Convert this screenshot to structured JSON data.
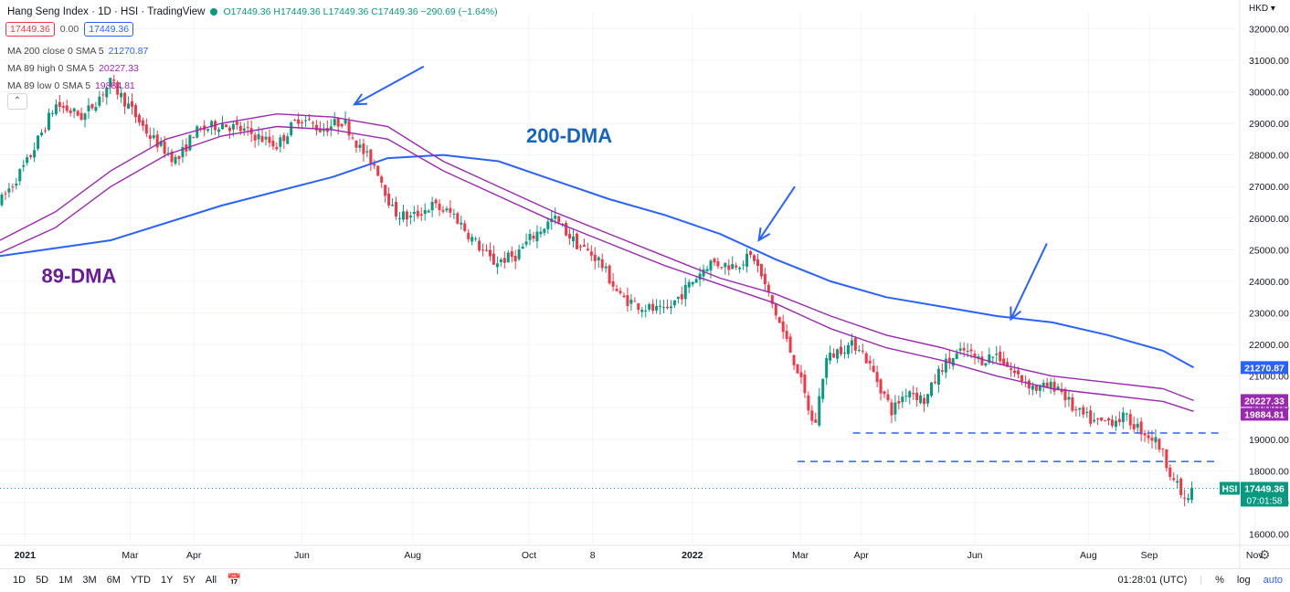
{
  "header": {
    "title": "Hang Seng Index · 1D · HSI · TradingView",
    "ohlc": "O17449.36 H17449.36 L17449.36 C17449.36 −290.69 (−1.64%)",
    "box_red": "17449.36",
    "change": "0.00",
    "box_blue": "17449.36",
    "status_color": "#089981"
  },
  "indicators": [
    {
      "label": "MA 200 close 0 SMA 5",
      "value": "21270.87",
      "color": "#2962ff"
    },
    {
      "label": "MA 89 high 0 SMA 5",
      "value": "20227.33",
      "color": "#9c27b0"
    },
    {
      "label": "MA 89 low 0 SMA 5",
      "value": "19884.81",
      "color": "#9c27b0"
    }
  ],
  "toolbar": {
    "timeframes": [
      "1D",
      "5D",
      "1M",
      "3M",
      "6M",
      "YTD",
      "1Y",
      "5Y",
      "All"
    ],
    "time": "01:28:01 (UTC)",
    "percent": "%",
    "log": "log",
    "auto": "auto"
  },
  "chart_data": {
    "type": "candlestick",
    "currency": "HKD",
    "title": "Hang Seng Index · 1D · HSI",
    "x_range": [
      0,
      22.3
    ],
    "ylim": [
      15700,
      32500
    ],
    "y_ticks": [
      16000,
      17000,
      18000,
      19000,
      20000,
      21000,
      22000,
      23000,
      24000,
      25000,
      26000,
      27000,
      28000,
      29000,
      30000,
      31000,
      32000
    ],
    "x_ticks": [
      {
        "label": "2021",
        "t": 0.45,
        "bold": true
      },
      {
        "label": "Mar",
        "t": 2.35
      },
      {
        "label": "Apr",
        "t": 3.5
      },
      {
        "label": "Jun",
        "t": 5.45
      },
      {
        "label": "Aug",
        "t": 7.45
      },
      {
        "label": "Oct",
        "t": 9.55
      },
      {
        "label": "8",
        "t": 10.7
      },
      {
        "label": "2022",
        "t": 12.5,
        "bold": true
      },
      {
        "label": "Mar",
        "t": 14.45
      },
      {
        "label": "Apr",
        "t": 15.55
      },
      {
        "label": "Jun",
        "t": 17.6
      },
      {
        "label": "Aug",
        "t": 19.65
      },
      {
        "label": "Sep",
        "t": 20.75
      },
      {
        "label": "Nov",
        "t": 22.65
      }
    ],
    "price_path": [
      [
        0,
        26500
      ],
      [
        0.5,
        27800
      ],
      [
        1.0,
        29600
      ],
      [
        1.5,
        29200
      ],
      [
        2.0,
        30300
      ],
      [
        2.3,
        29600
      ],
      [
        2.7,
        28600
      ],
      [
        3.2,
        27800
      ],
      [
        3.5,
        28700
      ],
      [
        4.0,
        29000
      ],
      [
        4.5,
        28700
      ],
      [
        5.0,
        28300
      ],
      [
        5.4,
        29200
      ],
      [
        5.8,
        28800
      ],
      [
        6.2,
        29100
      ],
      [
        6.5,
        28200
      ],
      [
        6.8,
        27600
      ],
      [
        7.1,
        26200
      ],
      [
        7.4,
        26000
      ],
      [
        7.8,
        26400
      ],
      [
        8.2,
        26100
      ],
      [
        8.5,
        25400
      ],
      [
        8.9,
        24600
      ],
      [
        9.3,
        24800
      ],
      [
        9.6,
        25400
      ],
      [
        10.0,
        26000
      ],
      [
        10.4,
        25200
      ],
      [
        10.8,
        24700
      ],
      [
        11.2,
        23500
      ],
      [
        11.6,
        23200
      ],
      [
        12.0,
        23000
      ],
      [
        12.4,
        23800
      ],
      [
        12.8,
        24600
      ],
      [
        13.2,
        24500
      ],
      [
        13.6,
        24800
      ],
      [
        14.0,
        23000
      ],
      [
        14.4,
        21200
      ],
      [
        14.7,
        19300
      ],
      [
        14.9,
        21500
      ],
      [
        15.2,
        21900
      ],
      [
        15.5,
        22000
      ],
      [
        15.8,
        21000
      ],
      [
        16.1,
        19900
      ],
      [
        16.4,
        20600
      ],
      [
        16.7,
        20200
      ],
      [
        17.0,
        21300
      ],
      [
        17.4,
        21800
      ],
      [
        17.7,
        21500
      ],
      [
        18.0,
        21700
      ],
      [
        18.3,
        21100
      ],
      [
        18.7,
        20600
      ],
      [
        19.1,
        20700
      ],
      [
        19.4,
        19900
      ],
      [
        19.8,
        19500
      ],
      [
        20.3,
        19700
      ],
      [
        20.6,
        19300
      ],
      [
        20.9,
        18900
      ],
      [
        21.2,
        17700
      ],
      [
        21.4,
        17000
      ],
      [
        21.55,
        17449
      ]
    ],
    "series": [
      {
        "name": "MA 200 close",
        "color": "#2962ff",
        "points": [
          [
            0,
            24800
          ],
          [
            2,
            25300
          ],
          [
            4,
            26400
          ],
          [
            6,
            27300
          ],
          [
            7,
            27900
          ],
          [
            8,
            28000
          ],
          [
            9,
            27800
          ],
          [
            10,
            27200
          ],
          [
            11,
            26600
          ],
          [
            12,
            26100
          ],
          [
            13,
            25500
          ],
          [
            14,
            24700
          ],
          [
            15,
            24000
          ],
          [
            16,
            23500
          ],
          [
            17,
            23200
          ],
          [
            18,
            22900
          ],
          [
            19,
            22700
          ],
          [
            20,
            22300
          ],
          [
            21,
            21800
          ],
          [
            21.55,
            21270.87
          ]
        ]
      },
      {
        "name": "MA 89 high",
        "color": "#9c27b0",
        "points": [
          [
            0,
            25300
          ],
          [
            1,
            26200
          ],
          [
            2,
            27500
          ],
          [
            3,
            28500
          ],
          [
            4,
            29000
          ],
          [
            5,
            29300
          ],
          [
            6,
            29200
          ],
          [
            7,
            28900
          ],
          [
            8,
            27800
          ],
          [
            9,
            27000
          ],
          [
            10,
            26200
          ],
          [
            11,
            25500
          ],
          [
            12,
            24800
          ],
          [
            13,
            24100
          ],
          [
            14,
            23600
          ],
          [
            15,
            22900
          ],
          [
            16,
            22300
          ],
          [
            17,
            21900
          ],
          [
            18,
            21400
          ],
          [
            19,
            21000
          ],
          [
            20,
            20800
          ],
          [
            21,
            20600
          ],
          [
            21.55,
            20227.33
          ]
        ]
      },
      {
        "name": "MA 89 low",
        "color": "#9c27b0",
        "points": [
          [
            0,
            24900
          ],
          [
            1,
            25700
          ],
          [
            2,
            27000
          ],
          [
            3,
            28000
          ],
          [
            4,
            28600
          ],
          [
            5,
            28900
          ],
          [
            6,
            28800
          ],
          [
            7,
            28500
          ],
          [
            8,
            27500
          ],
          [
            9,
            26700
          ],
          [
            10,
            25900
          ],
          [
            11,
            25200
          ],
          [
            12,
            24500
          ],
          [
            13,
            23900
          ],
          [
            14,
            23300
          ],
          [
            15,
            22500
          ],
          [
            16,
            21900
          ],
          [
            17,
            21500
          ],
          [
            18,
            21000
          ],
          [
            19,
            20600
          ],
          [
            20,
            20400
          ],
          [
            21,
            20200
          ],
          [
            21.55,
            19884.81
          ]
        ]
      }
    ],
    "hlines": [
      {
        "from": 15.4,
        "to": 22.0,
        "y": 19200
      },
      {
        "from": 14.4,
        "to": 22.0,
        "y": 18300
      }
    ],
    "arrows": [
      {
        "from": [
          7.65,
          30800
        ],
        "to": [
          6.4,
          29600
        ]
      },
      {
        "from": [
          14.35,
          27000
        ],
        "to": [
          13.7,
          25300
        ]
      },
      {
        "from": [
          18.9,
          25200
        ],
        "to": [
          18.25,
          22800
        ]
      }
    ],
    "annotations": [
      {
        "text": "200-DMA",
        "t": 9.5,
        "y": 28400,
        "color": "#1565c0"
      },
      {
        "text": "89-DMA",
        "t": 0.75,
        "y": 23950,
        "color": "#6a1b9a"
      }
    ],
    "price_labels": [
      {
        "text": "21270.87",
        "y": 21270.87,
        "color": "#2962ff"
      },
      {
        "text": "20227.33",
        "y": 20227.33,
        "color": "#9c27b0"
      },
      {
        "text": "19884.81",
        "y": 19884.81,
        "color": "#9c27b0"
      }
    ],
    "last": {
      "symbol": "HSI",
      "price": "17449.36",
      "countdown": "07:01:58",
      "color": "#089981"
    },
    "up_color": "#089981",
    "down_color": "#f23645"
  }
}
